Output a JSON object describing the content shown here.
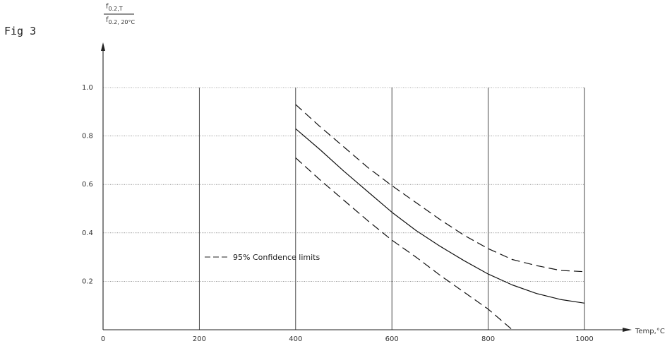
{
  "figure_label": "Fig 3",
  "ylabel": {
    "numerator_main": "f",
    "numerator_sub": "0.2,T",
    "denominator_main": "f",
    "denominator_sub": "0.2, 20°C"
  },
  "xlabel": "Temp,°C",
  "legend_label": "95% Confidence limits",
  "chart_data": {
    "type": "line",
    "title": "",
    "xlabel": "Temp,°C",
    "ylabel": "f0.2,T / f0.2,20°C",
    "xlim": [
      0,
      1000
    ],
    "ylim": [
      0,
      1.0
    ],
    "x_ticks": [
      0,
      200,
      400,
      600,
      800,
      1000
    ],
    "x_tick_labels": [
      "0",
      "200",
      "400",
      "600",
      "800",
      "1000"
    ],
    "y_ticks": [
      0.2,
      0.4,
      0.6,
      0.8,
      1.0
    ],
    "y_tick_labels": [
      "0.2",
      "0.4",
      "0.6",
      "0.8",
      "1.0"
    ],
    "grid": true,
    "legend_position": "lower-left",
    "series": [
      {
        "style": "solid",
        "x": [
          400,
          450,
          500,
          550,
          600,
          650,
          700,
          750,
          800,
          850,
          900,
          950,
          1000
        ],
        "y": [
          0.83,
          0.745,
          0.655,
          0.57,
          0.485,
          0.41,
          0.345,
          0.285,
          0.23,
          0.185,
          0.15,
          0.125,
          0.11
        ]
      },
      {
        "name": "95% Confidence limits",
        "style": "dashed",
        "x": [
          400,
          450,
          500,
          550,
          600,
          650,
          700,
          750,
          800,
          850,
          900,
          950,
          1000
        ],
        "y": [
          0.93,
          0.84,
          0.755,
          0.67,
          0.595,
          0.525,
          0.455,
          0.39,
          0.335,
          0.29,
          0.265,
          0.245,
          0.24
        ]
      },
      {
        "name": "95% Confidence limits",
        "style": "dashed",
        "x": [
          400,
          450,
          500,
          550,
          600,
          650,
          700,
          750,
          800,
          850
        ],
        "y": [
          0.71,
          0.62,
          0.535,
          0.45,
          0.37,
          0.3,
          0.225,
          0.155,
          0.085,
          0.0
        ]
      }
    ]
  }
}
